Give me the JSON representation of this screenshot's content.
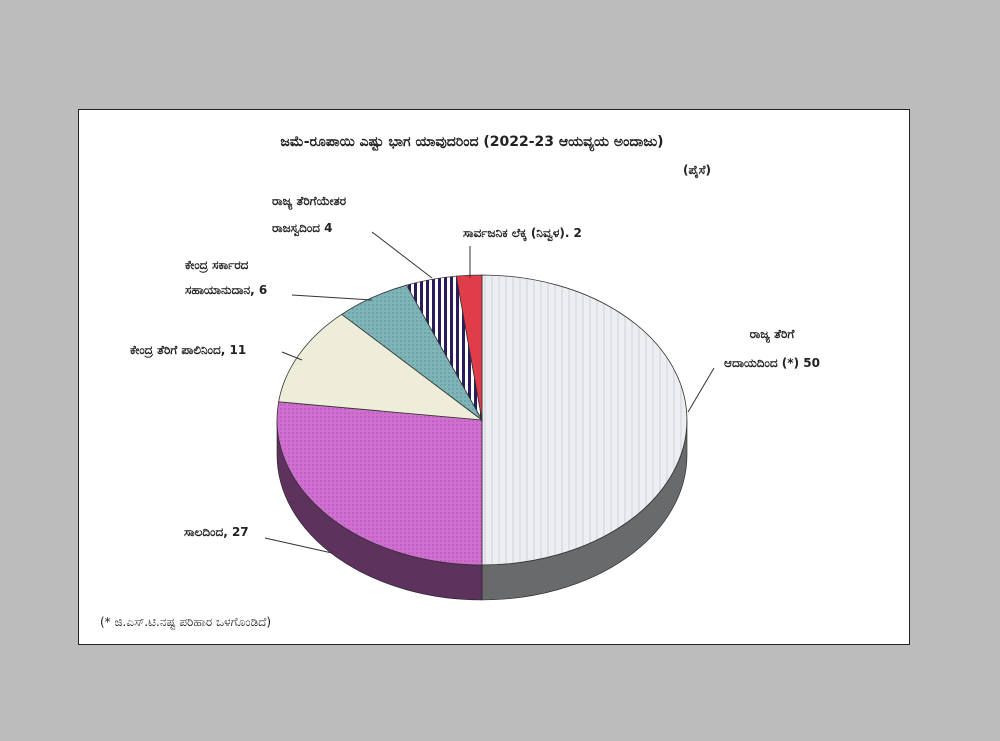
{
  "chart_data": {
    "type": "pie",
    "title": "ಜಮೆ-ರೂಪಾಯಿ ಎಷ್ಟು ಭಾಗ ಯಾವುದರಿಂದ (2022-23 ಆಯವ್ಯಯ ಅಂದಾಜು)",
    "subtitle": "(ಪೈಸೆ)",
    "footnote": "(* ಜಿ.ಎಸ್.ಟಿ.ನಷ್ಟ ಪರಿಹಾರ ಒಳಗೊಂಡಿದೆ)",
    "slices": [
      {
        "label": [
          "ರಾಜ್ಯ ತೆರಿಗೆ",
          "ಆದಾಯದಿಂದ (*) 50"
        ],
        "value": 50,
        "color": "#e9ebef",
        "pattern": "vlines"
      },
      {
        "label": [
          "ಸಾಲದಿಂದ, 27"
        ],
        "value": 27,
        "color": "#cf6fcf",
        "pattern": "dots"
      },
      {
        "label": [
          "ಕೇಂದ್ರ ತೆರಿಗೆ ಪಾಲಿನಿಂದ, 11"
        ],
        "value": 11,
        "color": "#ededd9",
        "pattern": "none"
      },
      {
        "label": [
          "ಕೇಂದ್ರ ಸರ್ಕಾರದ",
          "ಸಹಾಯಾನುದಾನ, 6"
        ],
        "value": 6,
        "color": "#77aeb2",
        "pattern": "dots"
      },
      {
        "label": [
          "ರಾಜ್ಯ ತೆರಿಗೆಯೇತರ",
          "ರಾಜಸ್ವದಿಂದ 4"
        ],
        "value": 4,
        "color": "#2a1c5a",
        "pattern": "stripes"
      },
      {
        "label": [
          "ಸಾರ್ವಜನಿಕ ಲೆಕ್ಕ (ನಿವ್ವಳ). 2"
        ],
        "value": 2,
        "color": "#e03c4a",
        "pattern": "none"
      }
    ]
  }
}
